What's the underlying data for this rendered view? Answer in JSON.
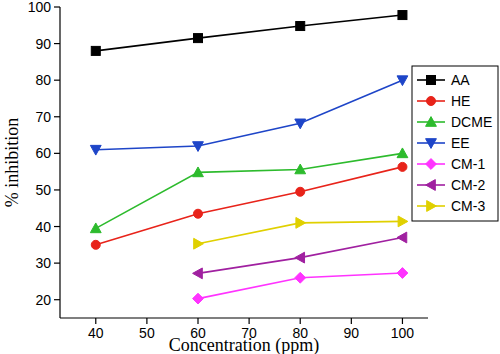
{
  "chart_data": {
    "type": "line",
    "x_label": "Concentration (ppm)",
    "y_label": "% inhibition",
    "x": [
      40,
      60,
      80,
      100
    ],
    "xlim": [
      33,
      105
    ],
    "xticks": [
      40,
      50,
      60,
      70,
      80,
      90,
      100
    ],
    "ylim": [
      15,
      100
    ],
    "yticks": [
      20,
      30,
      40,
      50,
      60,
      70,
      80,
      90,
      100
    ],
    "grid": false,
    "legend": "right",
    "series": [
      {
        "name": "AA",
        "color": "#000000",
        "marker": "square",
        "values": [
          88,
          91.5,
          94.8,
          97.8
        ]
      },
      {
        "name": "HE",
        "color": "#e8231a",
        "marker": "circle",
        "values": [
          35,
          43.5,
          49.5,
          56.3
        ]
      },
      {
        "name": "DCME",
        "color": "#2dbb2d",
        "marker": "triangle-up",
        "values": [
          39.5,
          54.8,
          55.6,
          60
        ]
      },
      {
        "name": "EE",
        "color": "#1e45c8",
        "marker": "triangle-down",
        "values": [
          61,
          62,
          68.2,
          80
        ]
      },
      {
        "name": "CM-1",
        "color": "#ff33ff",
        "marker": "diamond",
        "values": [
          null,
          20.3,
          26,
          27.3
        ]
      },
      {
        "name": "CM-2",
        "color": "#a020a0",
        "marker": "triangle-left",
        "values": [
          null,
          27.2,
          31.5,
          37
        ]
      },
      {
        "name": "CM-3",
        "color": "#e0d000",
        "marker": "triangle-right",
        "values": [
          null,
          35.3,
          41,
          41.4
        ]
      }
    ]
  }
}
